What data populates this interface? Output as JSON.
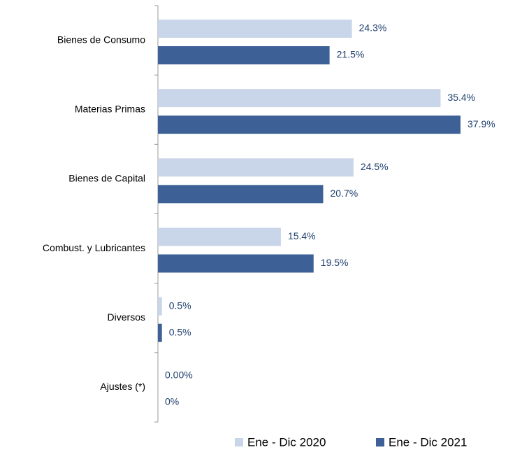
{
  "chart_data": {
    "type": "hbar",
    "categories": [
      "Bienes de Consumo",
      "Materias Primas",
      "Bienes de Capital",
      "Combust. y Lubricantes",
      "Diversos",
      "Ajustes (*)"
    ],
    "series": [
      {
        "name": "Ene - Dic 2020",
        "color": "#c9d5e8",
        "values": [
          24.3,
          35.4,
          24.5,
          15.4,
          0.5,
          0.0
        ],
        "value_labels": [
          "24.3%",
          "35.4%",
          "24.5%",
          "15.4%",
          "0.5%",
          "0.00%"
        ]
      },
      {
        "name": "Ene - Dic 2021",
        "color": "#3d6196",
        "values": [
          21.5,
          37.9,
          20.7,
          19.5,
          0.5,
          0
        ],
        "value_labels": [
          "21.5%",
          "37.9%",
          "20.7%",
          "19.5%",
          "0.5%",
          "0%"
        ]
      }
    ],
    "legend": "bottom"
  }
}
